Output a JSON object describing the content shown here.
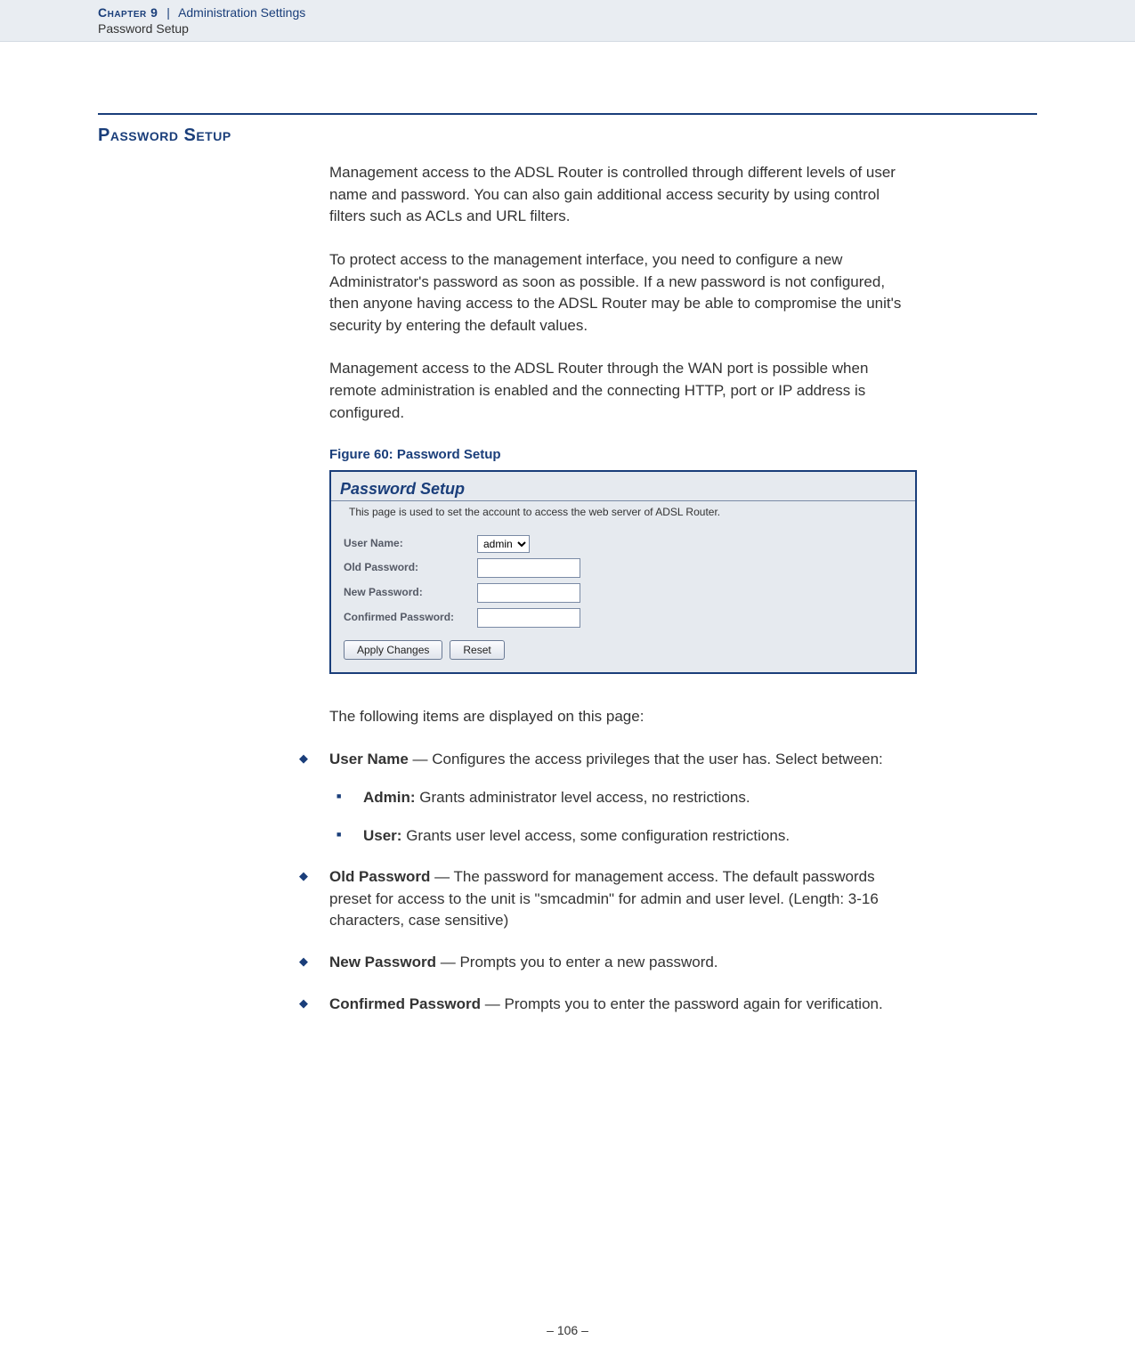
{
  "header": {
    "chapter_label": "Chapter 9",
    "separator": "|",
    "chapter_title": "Administration Settings",
    "subtitle": "Password Setup"
  },
  "section": {
    "title": "Password Setup"
  },
  "paragraphs": {
    "p1": "Management access to the ADSL Router is controlled through different levels of user name and password. You can also gain additional access security by using control filters such as ACLs and URL filters.",
    "p2": "To protect access to the management interface, you need to configure a new Administrator's password as soon as possible. If a new password is not configured, then anyone having access to the ADSL Router may be able to compromise the unit's security by entering the default values.",
    "p3": "Management access to the ADSL Router through the WAN port is possible when remote administration is enabled and the connecting HTTP, port or IP address is configured.",
    "items_intro": "The following items are displayed on this page:"
  },
  "figure": {
    "caption": "Figure 60:  Password Setup",
    "title": "Password Setup",
    "subtitle": "This page is used to set the account to access the web server of ADSL Router.",
    "form": {
      "username_label": "User Name:",
      "username_value": "admin",
      "old_pw_label": "Old Password:",
      "new_pw_label": "New Password:",
      "confirm_pw_label": "Confirmed Password:",
      "apply_btn": "Apply Changes",
      "reset_btn": "Reset"
    },
    "colors": {
      "border": "#1a3e7a",
      "panel_bg": "#e6eaef",
      "title_color": "#1a3e7a",
      "label_color": "#555a66"
    }
  },
  "items": {
    "username": {
      "term": "User Name",
      "text": " — Configures the access privileges that the user has. Select between:",
      "sub": {
        "admin_term": "Admin:",
        "admin_text": " Grants administrator level access, no restrictions.",
        "user_term": "User:",
        "user_text": " Grants user level access, some configuration restrictions."
      }
    },
    "old_pw": {
      "term": "Old Password",
      "text": " — The password for management access. The default passwords preset for access to the unit is \"smcadmin\" for admin and user level. (Length: 3-16 characters, case sensitive)"
    },
    "new_pw": {
      "term": "New Password",
      "text": " — Prompts you to enter a new password."
    },
    "confirm_pw": {
      "term": "Confirmed Password",
      "text": " — Prompts you to enter the password again for verification."
    }
  },
  "footer": {
    "page_number": "–  106  –"
  },
  "styling": {
    "brand_color": "#1a3e7a",
    "header_bg": "#e9edf2",
    "body_font_size": 17,
    "title_font_size": 20,
    "figure_caption_size": 15
  }
}
